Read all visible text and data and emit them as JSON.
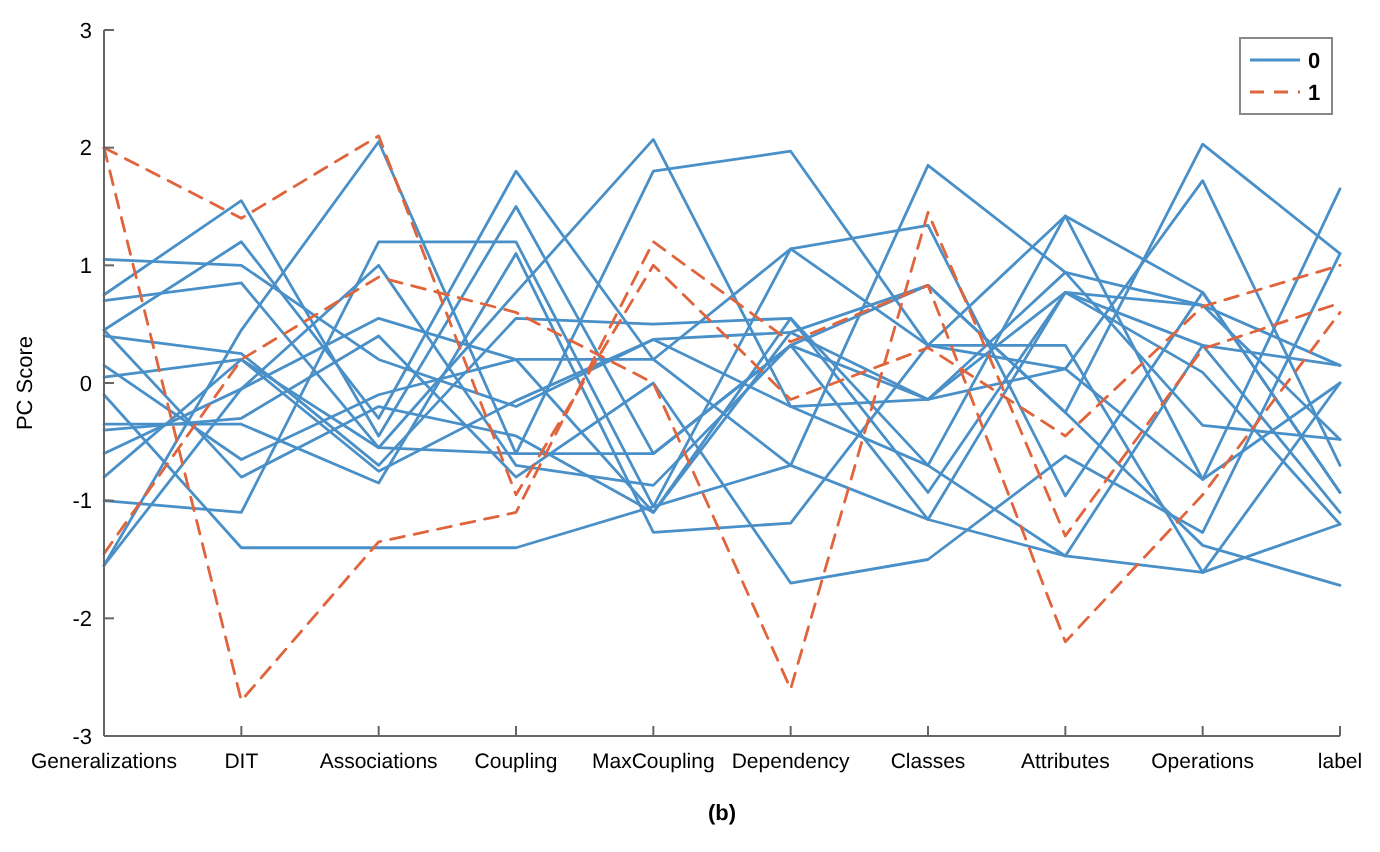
{
  "chart_data": {
    "type": "line",
    "ylabel": "PC Score",
    "annotations": [
      "(b)"
    ],
    "categories": [
      "Generalizations",
      "DIT",
      "Associations",
      "Coupling",
      "MaxCoupling",
      "Dependency",
      "Classes",
      "Attributes",
      "Operations",
      "label"
    ],
    "ylim": [
      -3,
      3
    ],
    "yticks": [
      -3,
      -2,
      -1,
      0,
      1,
      2,
      3
    ],
    "grid": false,
    "legend": "top right",
    "series": [
      {
        "name": "0",
        "color": "#4a90c8",
        "line_style": "solid",
        "values": [
          1.05,
          1.0,
          0.2,
          -0.2,
          0.37,
          0.43,
          -0.14,
          0.77,
          0.66,
          0.15
        ]
      },
      {
        "color": "#4a90c8",
        "line_style": "solid",
        "values": [
          0.75,
          1.55,
          -0.45,
          1.5,
          -0.6,
          0.32,
          0.83,
          -0.25,
          2.03,
          1.1
        ]
      },
      {
        "color": "#4a90c8",
        "line_style": "solid",
        "values": [
          0.45,
          1.2,
          -0.3,
          1.8,
          0.2,
          -0.7,
          1.85,
          0.94,
          -0.36,
          -0.48
        ]
      },
      {
        "color": "#4a90c8",
        "line_style": "solid",
        "values": [
          0.7,
          0.85,
          -0.55,
          0.77,
          2.07,
          -0.2,
          -0.7,
          1.42,
          -0.82,
          1.65
        ]
      },
      {
        "color": "#4a90c8",
        "line_style": "solid",
        "values": [
          -1.55,
          0.45,
          2.05,
          -0.6,
          1.8,
          1.97,
          0.32,
          0.12,
          1.72,
          -0.7
        ]
      },
      {
        "color": "#4a90c8",
        "line_style": "solid",
        "values": [
          -1.0,
          -1.1,
          1.2,
          1.2,
          -1.05,
          1.14,
          1.34,
          -0.96,
          0.77,
          -0.93
        ]
      },
      {
        "color": "#4a90c8",
        "line_style": "solid",
        "values": [
          0.4,
          0.25,
          -0.7,
          0.55,
          0.5,
          0.55,
          -0.93,
          0.77,
          0.32,
          -1.1
        ]
      },
      {
        "color": "#4a90c8",
        "line_style": "solid",
        "values": [
          -0.35,
          -0.35,
          -0.85,
          1.1,
          -1.27,
          -1.19,
          0.32,
          0.32,
          -1.61,
          0.0
        ]
      },
      {
        "color": "#4a90c8",
        "line_style": "solid",
        "values": [
          -0.6,
          -0.05,
          1.0,
          -0.7,
          -0.87,
          0.32,
          -1.16,
          0.77,
          0.09,
          -1.2
        ]
      },
      {
        "color": "#4a90c8",
        "line_style": "solid",
        "values": [
          -0.4,
          -0.3,
          0.4,
          -0.8,
          0.0,
          -1.7,
          -1.5,
          -0.62,
          -1.27,
          1.1
        ]
      },
      {
        "color": "#4a90c8",
        "line_style": "solid",
        "values": [
          0.15,
          -0.65,
          -0.1,
          0.2,
          -1.1,
          0.43,
          0.83,
          -0.25,
          -1.38,
          -1.72
        ]
      },
      {
        "color": "#4a90c8",
        "line_style": "solid",
        "values": [
          -0.8,
          0.2,
          -0.75,
          -0.15,
          0.37,
          -0.2,
          -0.14,
          0.94,
          0.66,
          -0.48
        ]
      },
      {
        "color": "#4a90c8",
        "line_style": "solid",
        "values": [
          0.45,
          -0.8,
          -0.2,
          -0.45,
          -1.1,
          0.55,
          -0.7,
          -1.47,
          0.32,
          0.15
        ]
      },
      {
        "color": "#4a90c8",
        "line_style": "solid",
        "values": [
          -0.1,
          -1.4,
          -1.4,
          -1.4,
          -1.05,
          -0.7,
          -1.16,
          -1.47,
          -1.61,
          -1.2
        ]
      },
      {
        "color": "#4a90c8",
        "line_style": "solid",
        "values": [
          -1.55,
          -0.05,
          0.55,
          0.2,
          0.2,
          1.14,
          0.32,
          1.42,
          0.77,
          -0.93
        ]
      },
      {
        "color": "#4a90c8",
        "line_style": "solid",
        "values": [
          0.05,
          0.2,
          -0.55,
          -0.6,
          -0.6,
          0.32,
          -0.14,
          0.12,
          -0.82,
          0.0
        ]
      },
      {
        "name": "1",
        "color": "#e0643c",
        "line_style": "dashed",
        "values": [
          2.0,
          1.4,
          2.1,
          -0.95,
          1.0,
          -0.14,
          0.3,
          -0.45,
          0.65,
          1.0
        ]
      },
      {
        "color": "#e0643c",
        "line_style": "dashed",
        "values": [
          2.0,
          -2.7,
          -1.35,
          -1.1,
          1.2,
          0.35,
          0.83,
          -2.2,
          -0.95,
          0.6
        ]
      },
      {
        "color": "#e0643c",
        "line_style": "dashed",
        "values": [
          -1.45,
          0.2,
          0.9,
          0.6,
          0.0,
          -2.6,
          1.45,
          -1.3,
          0.29,
          0.68
        ]
      }
    ]
  }
}
